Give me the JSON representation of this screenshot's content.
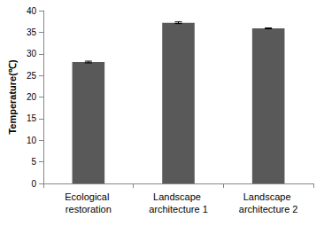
{
  "chart_data": {
    "type": "bar",
    "y_label": "Temperature(℃)",
    "categories": [
      "Ecological restoration",
      "Landscape architecture 1",
      "Landscape architecture 2"
    ],
    "values": [
      28.1,
      37.2,
      35.9
    ],
    "errors": [
      0.2,
      0.2,
      0.1
    ],
    "color": "#595959",
    "ylim": [
      0,
      40
    ],
    "yticks": [
      0,
      5,
      10,
      15,
      20,
      25,
      30,
      35,
      40
    ],
    "grid": false
  }
}
